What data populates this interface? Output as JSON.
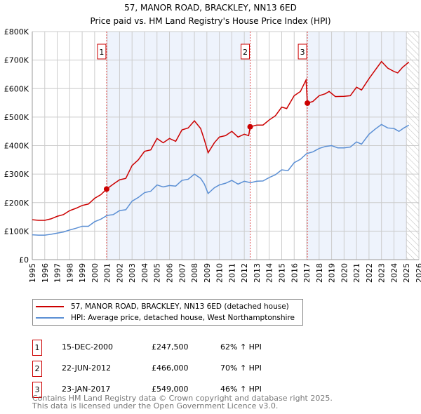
{
  "chart_data": {
    "type": "line",
    "title": "57, MANOR ROAD, BRACKLEY, NN13 6ED",
    "subtitle": "Price paid vs. HM Land Registry's House Price Index (HPI)",
    "xlim": [
      1995,
      2026
    ],
    "ylim": [
      0,
      800000
    ],
    "x_ticks": [
      "1995",
      "1996",
      "1997",
      "1998",
      "1999",
      "2000",
      "2001",
      "2002",
      "2003",
      "2004",
      "2005",
      "2006",
      "2007",
      "2008",
      "2009",
      "2010",
      "2011",
      "2012",
      "2013",
      "2014",
      "2015",
      "2016",
      "2017",
      "2018",
      "2019",
      "2020",
      "2021",
      "2022",
      "2023",
      "2024",
      "2025",
      "2026"
    ],
    "y_ticks": [
      {
        "v": 0,
        "label": "£0"
      },
      {
        "v": 100000,
        "label": "£100K"
      },
      {
        "v": 200000,
        "label": "£200K"
      },
      {
        "v": 300000,
        "label": "£300K"
      },
      {
        "v": 400000,
        "label": "£400K"
      },
      {
        "v": 500000,
        "label": "£500K"
      },
      {
        "v": 600000,
        "label": "£600K"
      },
      {
        "v": 700000,
        "label": "£700K"
      },
      {
        "v": 800000,
        "label": "£800K"
      }
    ],
    "grid": true,
    "forecast_hatch_from": 2025.0,
    "series": [
      {
        "name": "57, MANOR ROAD, BRACKLEY, NN13 6ED (detached house)",
        "color": "#cc0000",
        "points": [
          [
            1995,
            140
          ],
          [
            1995.5,
            138
          ],
          [
            1996,
            138
          ],
          [
            1996.5,
            143
          ],
          [
            1997,
            152
          ],
          [
            1997.5,
            158
          ],
          [
            1998,
            172
          ],
          [
            1998.5,
            180
          ],
          [
            1999,
            190
          ],
          [
            1999.5,
            195
          ],
          [
            2000,
            215
          ],
          [
            2000.5,
            228
          ],
          [
            2000.96,
            247.5
          ],
          [
            2001.5,
            265
          ],
          [
            2002,
            280
          ],
          [
            2002.5,
            285
          ],
          [
            2003,
            330
          ],
          [
            2003.5,
            350
          ],
          [
            2004,
            380
          ],
          [
            2004.5,
            385
          ],
          [
            2005,
            425
          ],
          [
            2005.5,
            410
          ],
          [
            2006,
            425
          ],
          [
            2006.5,
            415
          ],
          [
            2007,
            455
          ],
          [
            2007.5,
            462
          ],
          [
            2008,
            487
          ],
          [
            2008.5,
            460
          ],
          [
            2008.8,
            420
          ],
          [
            2009.1,
            375
          ],
          [
            2009.6,
            410
          ],
          [
            2010,
            430
          ],
          [
            2010.5,
            435
          ],
          [
            2011,
            450
          ],
          [
            2011.5,
            430
          ],
          [
            2012,
            440
          ],
          [
            2012.35,
            435
          ],
          [
            2012.47,
            466
          ],
          [
            2013,
            472
          ],
          [
            2013.5,
            472
          ],
          [
            2014,
            490
          ],
          [
            2014.5,
            505
          ],
          [
            2015,
            535
          ],
          [
            2015.4,
            530
          ],
          [
            2016,
            575
          ],
          [
            2016.5,
            590
          ],
          [
            2016.95,
            630
          ],
          [
            2017.06,
            549
          ],
          [
            2017.5,
            555
          ],
          [
            2018,
            575
          ],
          [
            2018.5,
            582
          ],
          [
            2018.8,
            590
          ],
          [
            2019.3,
            572
          ],
          [
            2020,
            573
          ],
          [
            2020.5,
            575
          ],
          [
            2021,
            605
          ],
          [
            2021.4,
            595
          ],
          [
            2022,
            635
          ],
          [
            2022.5,
            665
          ],
          [
            2023,
            695
          ],
          [
            2023.5,
            672
          ],
          [
            2024,
            660
          ],
          [
            2024.3,
            655
          ],
          [
            2024.7,
            675
          ],
          [
            2025.2,
            693
          ]
        ]
      },
      {
        "name": "HPI: Average price, detached house, West Northamptonshire",
        "color": "#5b8fd4",
        "points": [
          [
            1995,
            87
          ],
          [
            1995.5,
            86
          ],
          [
            1996,
            86
          ],
          [
            1996.5,
            89
          ],
          [
            1997,
            93
          ],
          [
            1997.5,
            97
          ],
          [
            1998,
            104
          ],
          [
            1998.5,
            110
          ],
          [
            1999,
            117
          ],
          [
            1999.5,
            117
          ],
          [
            2000,
            133
          ],
          [
            2000.5,
            142
          ],
          [
            2001,
            155
          ],
          [
            2001.5,
            158
          ],
          [
            2002,
            172
          ],
          [
            2002.5,
            175
          ],
          [
            2003,
            205
          ],
          [
            2003.5,
            218
          ],
          [
            2004,
            235
          ],
          [
            2004.5,
            240
          ],
          [
            2005,
            262
          ],
          [
            2005.5,
            255
          ],
          [
            2006,
            260
          ],
          [
            2006.5,
            258
          ],
          [
            2007,
            278
          ],
          [
            2007.5,
            282
          ],
          [
            2008,
            300
          ],
          [
            2008.5,
            285
          ],
          [
            2008.8,
            265
          ],
          [
            2009.1,
            232
          ],
          [
            2009.6,
            252
          ],
          [
            2010,
            262
          ],
          [
            2010.5,
            268
          ],
          [
            2011,
            278
          ],
          [
            2011.5,
            265
          ],
          [
            2012,
            275
          ],
          [
            2012.5,
            270
          ],
          [
            2013,
            275
          ],
          [
            2013.5,
            276
          ],
          [
            2014,
            288
          ],
          [
            2014.5,
            298
          ],
          [
            2015,
            315
          ],
          [
            2015.5,
            312
          ],
          [
            2016,
            340
          ],
          [
            2016.5,
            352
          ],
          [
            2017,
            372
          ],
          [
            2017.5,
            378
          ],
          [
            2018,
            390
          ],
          [
            2018.5,
            397
          ],
          [
            2019,
            400
          ],
          [
            2019.5,
            392
          ],
          [
            2020,
            392
          ],
          [
            2020.5,
            395
          ],
          [
            2021,
            413
          ],
          [
            2021.4,
            405
          ],
          [
            2022,
            440
          ],
          [
            2022.5,
            458
          ],
          [
            2023,
            474
          ],
          [
            2023.5,
            462
          ],
          [
            2024,
            460
          ],
          [
            2024.4,
            450
          ],
          [
            2024.8,
            462
          ],
          [
            2025.2,
            472
          ]
        ]
      }
    ],
    "sales": [
      {
        "n": "1",
        "x": 2000.96,
        "y": 247.5,
        "date": "15-DEC-2000",
        "price": "£247,500",
        "hpi": "62% ↑ HPI"
      },
      {
        "n": "2",
        "x": 2012.47,
        "y": 466,
        "date": "22-JUN-2012",
        "price": "£466,000",
        "hpi": "70% ↑ HPI"
      },
      {
        "n": "3",
        "x": 2017.06,
        "y": 549,
        "date": "23-JAN-2017",
        "price": "£549,000",
        "hpi": "46% ↑ HPI"
      }
    ]
  },
  "footer": {
    "line1": "Contains HM Land Registry data © Crown copyright and database right 2025.",
    "line2": "This data is licensed under the Open Government Licence v3.0."
  }
}
